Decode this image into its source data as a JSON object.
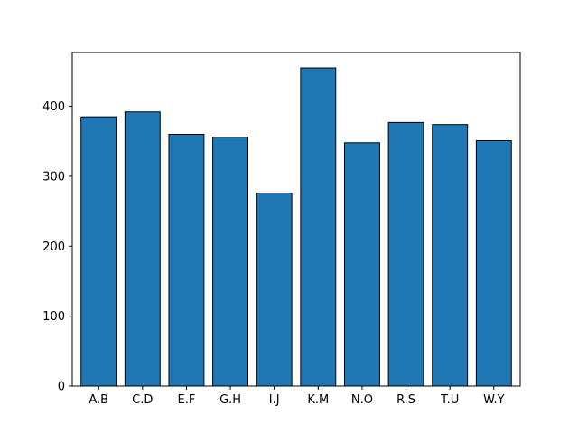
{
  "chart_data": {
    "type": "bar",
    "title": "",
    "xlabel": "",
    "ylabel": "",
    "categories": [
      "A.B",
      "C.D",
      "E.F",
      "G.H",
      "I.J",
      "K.M",
      "N.O",
      "R.S",
      "T.U",
      "W.Y"
    ],
    "values": [
      385,
      392,
      360,
      356,
      276,
      455,
      348,
      377,
      374,
      351
    ],
    "ylim": [
      0,
      477
    ],
    "yticks": [
      0,
      100,
      200,
      300,
      400
    ],
    "bar_color": "#1f77b4",
    "edge_color": "#000000",
    "grid": false,
    "legend": "none"
  }
}
